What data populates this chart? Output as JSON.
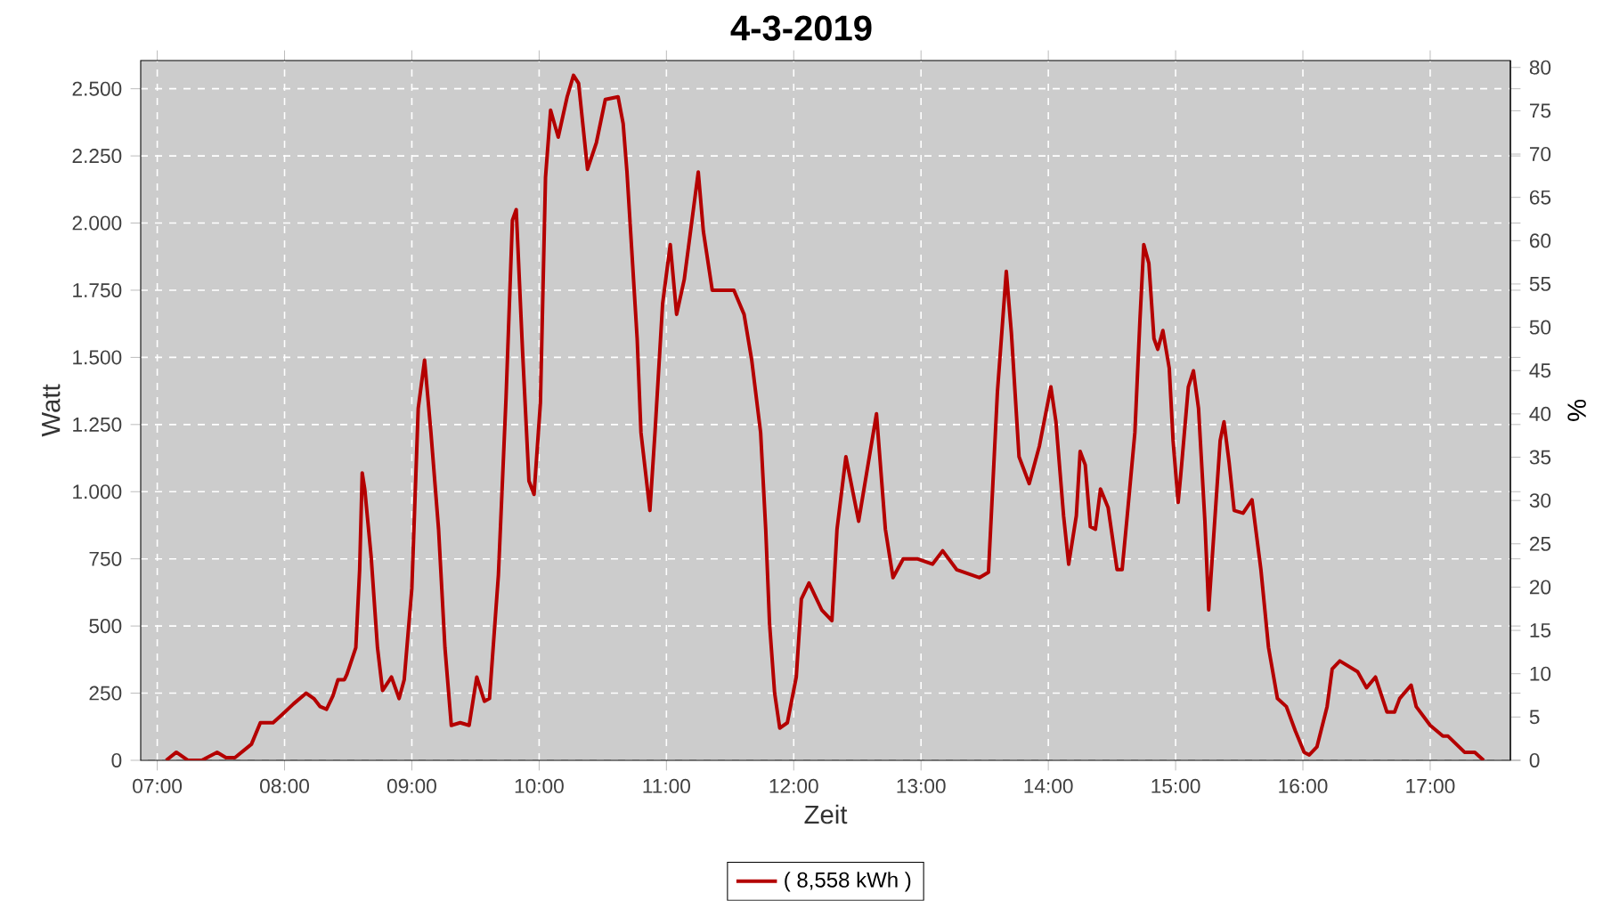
{
  "chart_data": {
    "type": "line",
    "title": "4-3-2019",
    "xlabel": "Zeit",
    "ylabel": "Watt",
    "y2label": "%",
    "xlim": [
      6.87,
      17.63
    ],
    "xticks": [
      {
        "value": 7,
        "label": "07:00"
      },
      {
        "value": 8,
        "label": "08:00"
      },
      {
        "value": 9,
        "label": "09:00"
      },
      {
        "value": 10,
        "label": "10:00"
      },
      {
        "value": 11,
        "label": "11:00"
      },
      {
        "value": 12,
        "label": "12:00"
      },
      {
        "value": 13,
        "label": "13:00"
      },
      {
        "value": 14,
        "label": "14:00"
      },
      {
        "value": 15,
        "label": "15:00"
      },
      {
        "value": 16,
        "label": "16:00"
      },
      {
        "value": 17,
        "label": "17:00"
      }
    ],
    "ylim": [
      0,
      2605
    ],
    "yticks": [
      0,
      250,
      500,
      750,
      {
        "value": 1000,
        "label": "1.000"
      },
      {
        "value": 1250,
        "label": "1.250"
      },
      {
        "value": 1500,
        "label": "1.500"
      },
      {
        "value": 1750,
        "label": "1.750"
      },
      {
        "value": 2000,
        "label": "2.000"
      },
      {
        "value": 2250,
        "label": "2.250"
      },
      {
        "value": 2500,
        "label": "2.500"
      }
    ],
    "y2lim": [
      0,
      80.8
    ],
    "y2ticks": [
      0,
      5,
      10,
      15,
      20,
      25,
      30,
      35,
      40,
      45,
      50,
      55,
      60,
      65,
      70,
      75,
      80
    ],
    "grid": true,
    "legend": "bottom",
    "marker": "none",
    "line_style": "solid",
    "series": [
      {
        "name": "( 8,558 kWh )",
        "color": "#b40000",
        "x": [
          7.07,
          7.15,
          7.24,
          7.35,
          7.47,
          7.54,
          7.61,
          7.74,
          7.81,
          7.91,
          7.98,
          8.07,
          8.17,
          8.23,
          8.28,
          8.33,
          8.38,
          8.42,
          8.47,
          8.49,
          8.56,
          8.59,
          8.61,
          8.63,
          8.68,
          8.73,
          8.77,
          8.84,
          8.9,
          8.94,
          9.0,
          9.05,
          9.1,
          9.15,
          9.21,
          9.26,
          9.31,
          9.38,
          9.45,
          9.51,
          9.57,
          9.61,
          9.68,
          9.74,
          9.79,
          9.82,
          9.87,
          9.92,
          9.96,
          10.01,
          10.05,
          10.09,
          10.15,
          10.22,
          10.27,
          10.31,
          10.38,
          10.45,
          10.52,
          10.62,
          10.66,
          10.69,
          10.73,
          10.77,
          10.8,
          10.87,
          10.91,
          10.97,
          11.03,
          11.08,
          11.14,
          11.25,
          11.29,
          11.36,
          11.53,
          11.61,
          11.67,
          11.74,
          11.78,
          11.81,
          11.85,
          11.89,
          11.95,
          12.02,
          12.06,
          12.12,
          12.22,
          12.3,
          12.34,
          12.41,
          12.51,
          12.65,
          12.72,
          12.78,
          12.86,
          12.97,
          13.09,
          13.17,
          13.28,
          13.46,
          13.53,
          13.6,
          13.67,
          13.71,
          13.77,
          13.85,
          13.93,
          14.02,
          14.06,
          14.12,
          14.16,
          14.22,
          14.25,
          14.29,
          14.33,
          14.37,
          14.41,
          14.47,
          14.54,
          14.58,
          14.62,
          14.68,
          14.72,
          14.75,
          14.79,
          14.83,
          14.86,
          14.9,
          14.95,
          14.98,
          15.02,
          15.04,
          15.1,
          15.14,
          15.18,
          15.23,
          15.26,
          15.31,
          15.35,
          15.38,
          15.42,
          15.46,
          15.53,
          15.6,
          15.67,
          15.73,
          15.8,
          15.87,
          15.94,
          16.01,
          16.05,
          16.11,
          16.19,
          16.23,
          16.29,
          16.43,
          16.5,
          16.57,
          16.66,
          16.72,
          16.76,
          16.85,
          16.89,
          17.0,
          17.1,
          17.14,
          17.27,
          17.35,
          17.42
        ],
        "values": [
          0,
          30,
          0,
          0,
          30,
          10,
          10,
          60,
          140,
          140,
          170,
          210,
          250,
          230,
          200,
          190,
          240,
          300,
          300,
          320,
          420,
          710,
          1070,
          1010,
          760,
          420,
          260,
          310,
          230,
          300,
          640,
          1310,
          1490,
          1220,
          860,
          420,
          130,
          140,
          130,
          310,
          220,
          230,
          690,
          1350,
          2010,
          2050,
          1520,
          1040,
          990,
          1330,
          2170,
          2420,
          2320,
          2470,
          2550,
          2520,
          2200,
          2300,
          2460,
          2470,
          2370,
          2190,
          1880,
          1570,
          1220,
          930,
          1220,
          1700,
          1920,
          1660,
          1790,
          2190,
          1970,
          1750,
          1750,
          1660,
          1490,
          1220,
          860,
          510,
          250,
          120,
          140,
          310,
          600,
          660,
          560,
          520,
          860,
          1130,
          890,
          1290,
          860,
          680,
          750,
          750,
          730,
          780,
          710,
          680,
          700,
          1370,
          1820,
          1590,
          1130,
          1030,
          1170,
          1390,
          1260,
          910,
          730,
          910,
          1150,
          1100,
          870,
          860,
          1010,
          940,
          710,
          710,
          910,
          1220,
          1640,
          1920,
          1850,
          1570,
          1530,
          1600,
          1460,
          1190,
          960,
          1060,
          1390,
          1450,
          1310,
          890,
          560,
          910,
          1190,
          1260,
          1110,
          930,
          920,
          970,
          710,
          420,
          230,
          200,
          110,
          30,
          20,
          50,
          200,
          340,
          370,
          330,
          270,
          310,
          180,
          180,
          230,
          280,
          200,
          130,
          90,
          90,
          30,
          30,
          0
        ]
      }
    ]
  }
}
